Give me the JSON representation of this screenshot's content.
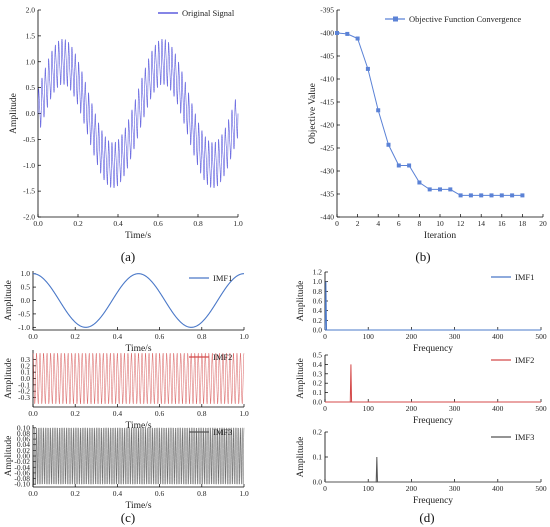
{
  "colors": {
    "signal": "#3c3cd8",
    "convergence": "#5b82d6",
    "imf1": "#4a78c8",
    "imf2": "#d44a4a",
    "imf3": "#555555",
    "axis": "#000000"
  },
  "panel_labels": [
    "(a)",
    "(b)",
    "(c)",
    "(d)"
  ],
  "chart_data": [
    {
      "panel": "(a)",
      "type": "line",
      "xlabel": "Time/s",
      "ylabel": "Amplitude",
      "legend": [
        "Original Signal"
      ],
      "legend_position": "top-right",
      "xlim": [
        0,
        1.0
      ],
      "ylim": [
        -2.0,
        2.0
      ],
      "xticks": [
        "0.0",
        "0.2",
        "0.4",
        "0.6",
        "0.8",
        "1.0"
      ],
      "yticks": [
        "2.0",
        "1.5",
        "1.0",
        "0.5",
        "0.0",
        "-0.5",
        "-1.0",
        "-1.5",
        "-2.0"
      ],
      "series": [
        {
          "name": "Original Signal",
          "components": [
            {
              "amplitude": 1.0,
              "frequency": 2
            },
            {
              "amplitude": 0.4,
              "frequency": 60
            },
            {
              "amplitude": 0.1,
              "frequency": 120
            }
          ]
        }
      ]
    },
    {
      "panel": "(b)",
      "type": "line",
      "xlabel": "Iteration",
      "ylabel": "Objective Value",
      "legend": [
        "Objective Function Convergence"
      ],
      "legend_position": "top-right",
      "xlim": [
        0,
        20
      ],
      "ylim": [
        -440,
        -395
      ],
      "xticks": [
        "0",
        "2",
        "4",
        "6",
        "8",
        "10",
        "12",
        "14",
        "16",
        "18",
        "20"
      ],
      "yticks": [
        "-395",
        "-400",
        "-405",
        "-410",
        "-415",
        "-420",
        "-425",
        "-430",
        "-435",
        "-440"
      ],
      "series": [
        {
          "name": "Objective Function Convergence",
          "x": [
            0,
            1,
            2,
            3,
            4,
            5,
            6,
            7,
            8,
            9,
            10,
            11,
            12,
            13,
            14,
            15,
            16,
            17,
            18
          ],
          "y": [
            -400,
            -400.2,
            -401.2,
            -407.8,
            -416.8,
            -424.3,
            -428.8,
            -428.8,
            -432.5,
            -434.0,
            -434.0,
            -434.0,
            -435.3,
            -435.3,
            -435.3,
            -435.3,
            -435.3,
            -435.3,
            -435.3
          ]
        }
      ]
    },
    {
      "panel": "(c)",
      "type": "line",
      "xlabel": "Time/s",
      "ylabel": "Amplitude",
      "subplots": [
        {
          "legend": "IMF1",
          "xlim": [
            0,
            1.0
          ],
          "ylim": [
            -1.1,
            1.1
          ],
          "yticks": [
            "1.0",
            "0.5",
            "0.0",
            "-0.5",
            "-1.0"
          ],
          "xticks": [
            "0.0",
            "0.2",
            "0.4",
            "0.6",
            "0.8",
            "1.0"
          ],
          "amplitude": 1.0,
          "frequency": 2
        },
        {
          "legend": "IMF2",
          "xlim": [
            0,
            1.0
          ],
          "ylim": [
            -0.45,
            0.45
          ],
          "yticks": [
            "0.3",
            "0.2",
            "0.1",
            "0.0",
            "-0.1",
            "-0.2",
            "-0.3"
          ],
          "xticks": [
            "0.0",
            "0.2",
            "0.4",
            "0.6",
            "0.8",
            "1.0"
          ],
          "amplitude": 0.4,
          "frequency": 60
        },
        {
          "legend": "IMF3",
          "xlim": [
            0,
            1.0
          ],
          "ylim": [
            -0.11,
            0.11
          ],
          "yticks": [
            "0.10",
            "0.08",
            "0.06",
            "0.04",
            "0.02",
            "0.00",
            "-0.02",
            "-0.04",
            "-0.06",
            "-0.08",
            "-0.10"
          ],
          "xticks": [
            "0.0",
            "0.2",
            "0.4",
            "0.6",
            "0.8",
            "1.0"
          ],
          "amplitude": 0.1,
          "frequency": 120
        }
      ]
    },
    {
      "panel": "(d)",
      "type": "line",
      "xlabel": "Frequency",
      "ylabel": "Amplitude",
      "subplots": [
        {
          "legend": "IMF1",
          "xlim": [
            0,
            500
          ],
          "ylim": [
            0,
            1.2
          ],
          "yticks": [
            "1.2",
            "1.0",
            "0.8",
            "0.6",
            "0.4",
            "0.2",
            "0.0"
          ],
          "xticks": [
            "0",
            "100",
            "200",
            "300",
            "400",
            "500"
          ],
          "peak_frequency": 2,
          "peak_amplitude": 1.0
        },
        {
          "legend": "IMF2",
          "xlim": [
            0,
            500
          ],
          "ylim": [
            0,
            0.5
          ],
          "yticks": [
            "0.5",
            "0.4",
            "0.3",
            "0.2",
            "0.1",
            "0.0"
          ],
          "xticks": [
            "0",
            "100",
            "200",
            "300",
            "400",
            "500"
          ],
          "peak_frequency": 60,
          "peak_amplitude": 0.4
        },
        {
          "legend": "IMF3",
          "xlim": [
            0,
            500
          ],
          "ylim": [
            0,
            0.2
          ],
          "yticks": [
            "0.2",
            "0.1",
            "0.0"
          ],
          "xticks": [
            "0",
            "100",
            "200",
            "300",
            "400",
            "500"
          ],
          "peak_frequency": 120,
          "peak_amplitude": 0.1
        }
      ]
    }
  ]
}
